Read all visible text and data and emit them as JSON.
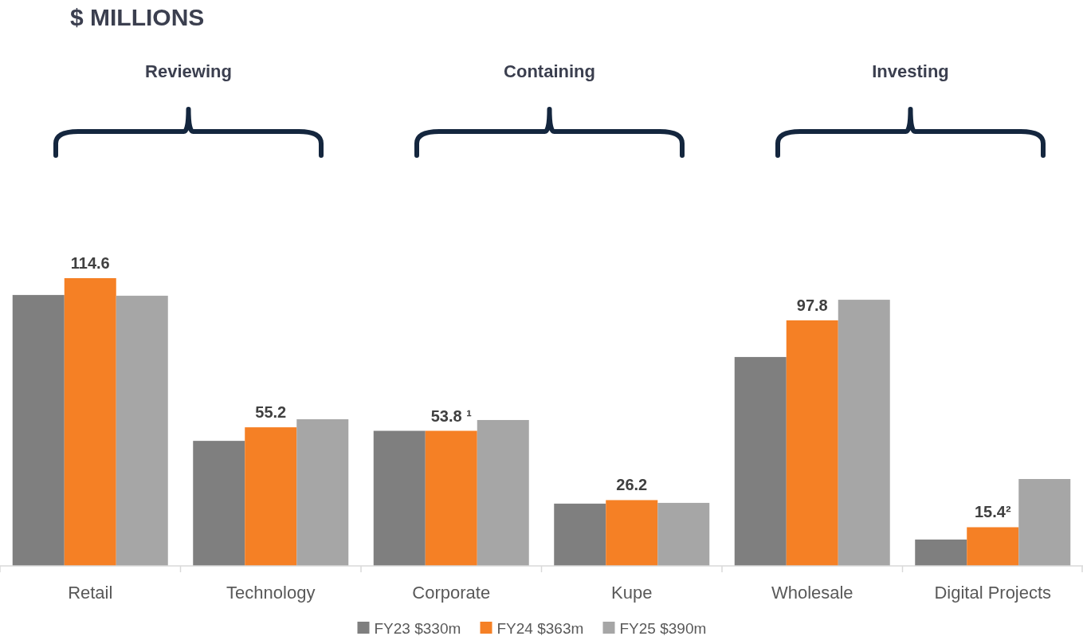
{
  "chart_data": {
    "type": "bar",
    "title": "$ MILLIONS",
    "categories": [
      "Retail",
      "Technology",
      "Corporate",
      "Kupe",
      "Wholesale",
      "Digital Projects"
    ],
    "series": [
      {
        "name": "FY23 $330m",
        "color": "#7f7f7f",
        "values": [
          107.9,
          49.8,
          53.8,
          24.8,
          83.2,
          10.5
        ]
      },
      {
        "name": "FY24 $363m",
        "color": "#f58025",
        "values": [
          114.6,
          55.2,
          53.8,
          26.2,
          97.8,
          15.4
        ],
        "value_labels": [
          "114.6",
          "55.2",
          "53.8 ¹",
          "26.2",
          "97.8",
          "15.4²"
        ]
      },
      {
        "name": "FY25 $390m",
        "color": "#a6a6a6",
        "values": [
          107.6,
          58.4,
          58.1,
          25.1,
          106.0,
          34.6
        ]
      }
    ],
    "annotations": [
      "Reviewing",
      "Containing",
      "Investing"
    ],
    "legend": "bottom"
  }
}
